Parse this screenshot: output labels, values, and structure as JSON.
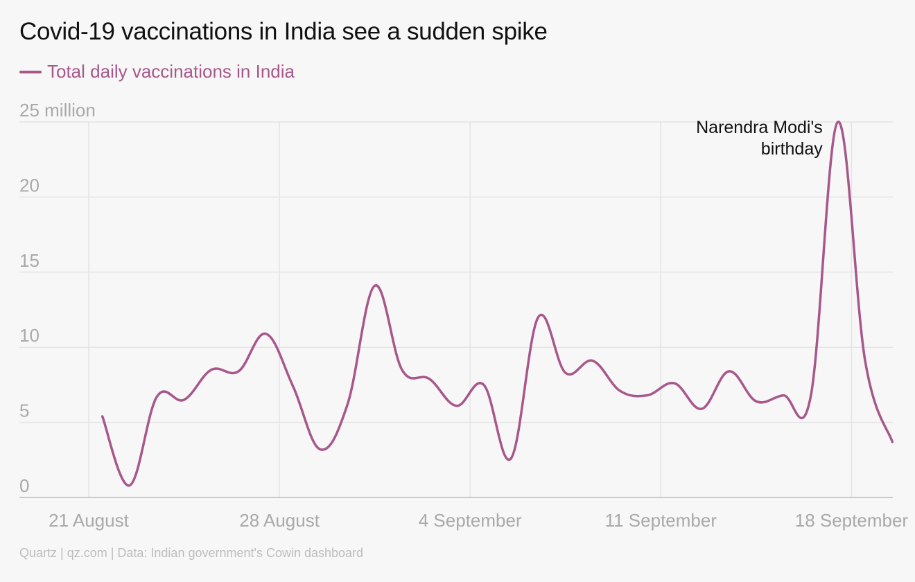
{
  "header": {
    "title": "Covid-19 vaccinations in India see a sudden spike"
  },
  "legend": {
    "label": "Total daily vaccinations in India"
  },
  "footer": {
    "source": "Quartz | qz.com | Data: Indian government's Cowin dashboard"
  },
  "colors": {
    "series": "#a8578b",
    "grid": "#e4e4e4",
    "axis": "#c8c8c8",
    "tick_text": "#a9a9a9"
  },
  "chart_data": {
    "type": "line",
    "title": "Covid-19 vaccinations in India see a sudden spike",
    "xlabel": "",
    "ylabel": "",
    "x_start_label": "21 August",
    "x": [
      "2021-08-21",
      "2021-08-22",
      "2021-08-23",
      "2021-08-24",
      "2021-08-25",
      "2021-08-26",
      "2021-08-27",
      "2021-08-28",
      "2021-08-29",
      "2021-08-30",
      "2021-08-31",
      "2021-09-01",
      "2021-09-02",
      "2021-09-03",
      "2021-09-04",
      "2021-09-05",
      "2021-09-06",
      "2021-09-07",
      "2021-09-08",
      "2021-09-09",
      "2021-09-10",
      "2021-09-11",
      "2021-09-12",
      "2021-09-13",
      "2021-09-14",
      "2021-09-15",
      "2021-09-16",
      "2021-09-17",
      "2021-09-18",
      "2021-09-19"
    ],
    "x_tick_labels": [
      "21 August",
      "28 August",
      "4 September",
      "11 September",
      "18 September"
    ],
    "y_tick_labels": [
      "0",
      "5",
      "10",
      "15",
      "20",
      "25 million"
    ],
    "ylim": [
      0,
      25
    ],
    "grid": true,
    "legend_position": "top-left",
    "series": [
      {
        "name": "Total daily vaccinations in India",
        "unit": "million",
        "values": [
          5.4,
          0.8,
          6.7,
          6.5,
          8.5,
          8.4,
          10.9,
          7.4,
          3.2,
          6.2,
          14.1,
          8.5,
          7.9,
          6.1,
          7.5,
          2.6,
          12.0,
          8.3,
          9.1,
          7.1,
          6.8,
          7.6,
          5.9,
          8.4,
          6.4,
          6.8,
          6.7,
          25.0,
          9.1,
          3.7
        ]
      }
    ],
    "annotations": [
      {
        "x": "2021-09-17",
        "lines": [
          "Narendra Modi's",
          "birthday"
        ]
      }
    ]
  }
}
